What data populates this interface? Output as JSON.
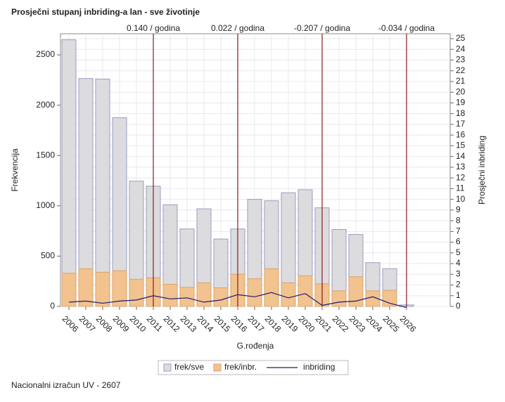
{
  "chart_data": {
    "type": "bar",
    "title": "Prosječni stupanj inbriding-a lan - sve životinje",
    "x_label": "G.rođenja",
    "y_label": "Frekvencija",
    "y2_label": "Prosječni inbriding",
    "footnote": "Nacionalni izračun UV - 2607",
    "categories": [
      "2006",
      "2007",
      "2008",
      "2009",
      "2010",
      "2011",
      "2012",
      "2013",
      "2014",
      "2015",
      "2016",
      "2017",
      "2018",
      "2019",
      "2020",
      "2021",
      "2022",
      "2023",
      "2024",
      "2025",
      "2026"
    ],
    "series": [
      {
        "name": "frek/sve",
        "type": "bar",
        "color": "#dcdcdf",
        "values": [
          2650,
          2265,
          2260,
          1875,
          1245,
          1195,
          1010,
          770,
          970,
          670,
          770,
          1065,
          1050,
          1130,
          1160,
          980,
          765,
          715,
          435,
          375,
          15
        ]
      },
      {
        "name": "frek/inbr.",
        "type": "bar",
        "color": "#f2c28f",
        "values": [
          330,
          375,
          340,
          355,
          270,
          285,
          220,
          190,
          235,
          185,
          320,
          275,
          375,
          235,
          305,
          225,
          155,
          295,
          155,
          160,
          0
        ]
      },
      {
        "name": "inbriding",
        "type": "line",
        "axis": "y2",
        "color": "#1c1c6e",
        "values": [
          0.4,
          0.5,
          0.3,
          0.5,
          0.6,
          1.0,
          0.7,
          0.8,
          0.4,
          0.6,
          1.1,
          0.9,
          1.3,
          0.8,
          1.2,
          0.1,
          0.4,
          0.5,
          0.9,
          0.3,
          -0.1
        ]
      }
    ],
    "reference_lines": [
      {
        "x": "2011",
        "label": "0.140 / godina"
      },
      {
        "x": "2016",
        "label": "0.022 / godina"
      },
      {
        "x": "2021",
        "label": "-0.207 / godina"
      },
      {
        "x": "2026",
        "label": "-0.034 / godina"
      }
    ],
    "reference_color": "#8b1a1a",
    "ylim": [
      0,
      2710
    ],
    "yticks": [
      0,
      500,
      1000,
      1500,
      2000,
      2500
    ],
    "y2lim": [
      0,
      25.46
    ],
    "y2ticks": [
      0,
      1,
      2,
      3,
      4,
      5,
      6,
      7,
      8,
      9,
      10,
      11,
      12,
      13,
      14,
      15,
      16,
      17,
      18,
      19,
      20,
      21,
      22,
      23,
      24,
      25
    ],
    "grid": true
  }
}
